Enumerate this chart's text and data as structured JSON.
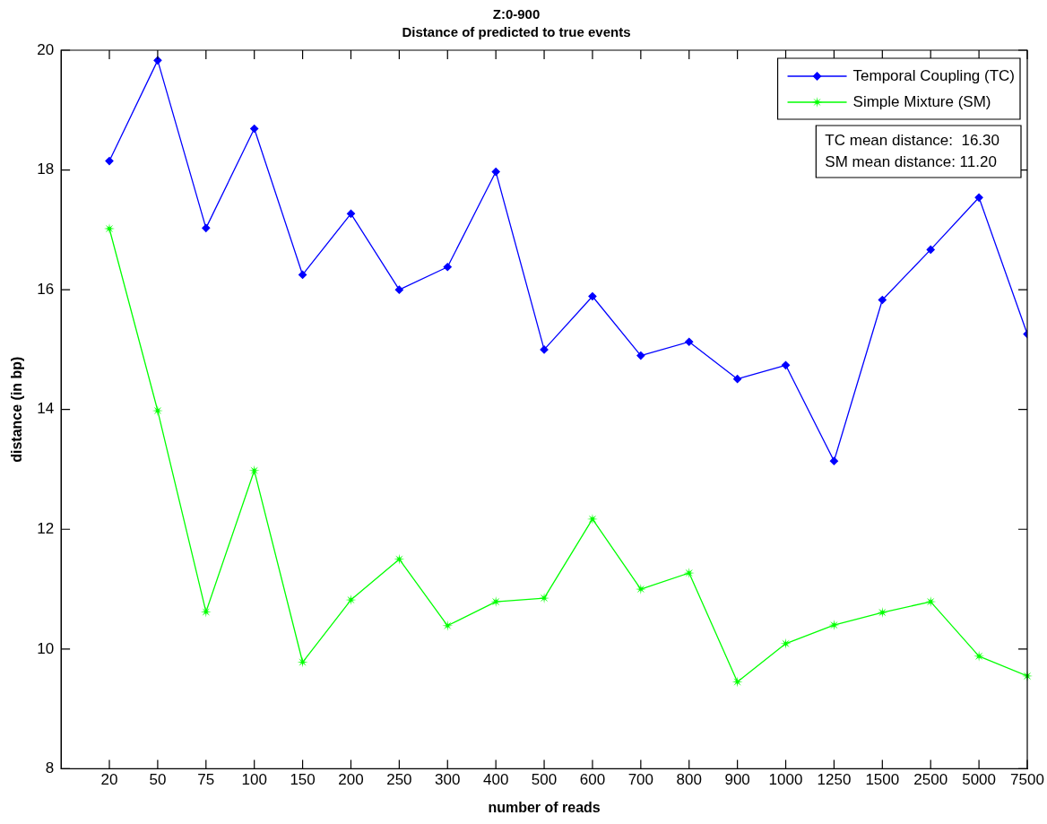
{
  "chart_data": {
    "type": "line",
    "title": "Z:0-900",
    "subtitle": "Distance of predicted to true events",
    "xlabel": "number of reads",
    "ylabel": "distance (in bp)",
    "categories": [
      "20",
      "50",
      "75",
      "100",
      "150",
      "200",
      "250",
      "300",
      "400",
      "500",
      "600",
      "700",
      "800",
      "900",
      "1000",
      "1250",
      "1500",
      "2500",
      "5000",
      "7500"
    ],
    "series": [
      {
        "name": "Temporal Coupling (TC)",
        "color": "#0000ff",
        "marker": "diamond",
        "values": [
          18.15,
          19.83,
          17.03,
          18.69,
          16.25,
          17.27,
          16.0,
          16.38,
          17.97,
          15.0,
          15.89,
          14.9,
          15.13,
          14.51,
          14.74,
          13.14,
          15.83,
          16.67,
          17.54,
          15.26
        ]
      },
      {
        "name": "Simple Mixture (SM)",
        "color": "#00ff00",
        "marker": "star",
        "values": [
          17.02,
          13.98,
          10.62,
          12.98,
          9.78,
          10.82,
          11.5,
          10.39,
          10.79,
          10.85,
          12.17,
          11.0,
          11.27,
          9.45,
          10.09,
          10.4,
          10.61,
          10.79,
          9.88,
          9.55
        ]
      }
    ],
    "ylim": [
      8,
      20
    ],
    "yticks": [
      8,
      10,
      12,
      14,
      16,
      18,
      20
    ],
    "grid": false,
    "legend": "top right",
    "line_style": "solid",
    "annotations": [
      "TC mean distance:  16.30",
      "SM mean distance: 11.20"
    ]
  }
}
